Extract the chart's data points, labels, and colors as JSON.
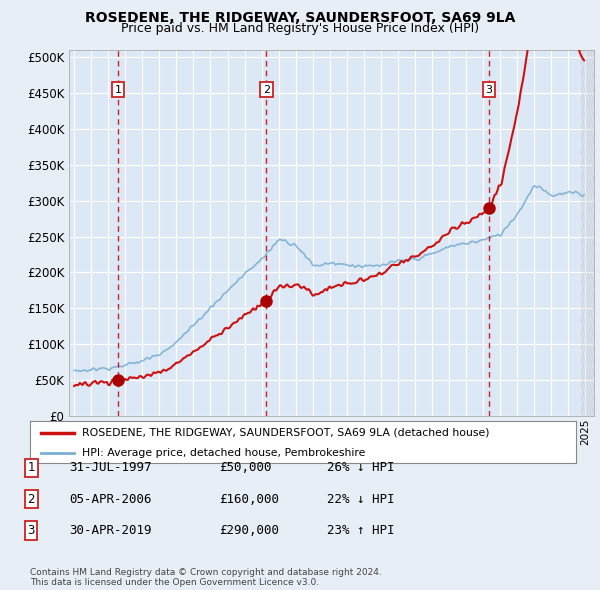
{
  "title": "ROSEDENE, THE RIDGEWAY, SAUNDERSFOOT, SA69 9LA",
  "subtitle": "Price paid vs. HM Land Registry's House Price Index (HPI)",
  "title_fontsize": 10,
  "subtitle_fontsize": 9,
  "background_color": "#e8eef5",
  "plot_bg_color": "#dce8f5",
  "yticks": [
    0,
    50000,
    100000,
    150000,
    200000,
    250000,
    300000,
    350000,
    400000,
    450000,
    500000
  ],
  "ytick_labels": [
    "£0",
    "£50K",
    "£100K",
    "£150K",
    "£200K",
    "£250K",
    "£300K",
    "£350K",
    "£400K",
    "£450K",
    "£500K"
  ],
  "xmin": 1994.7,
  "xmax": 2025.5,
  "ymin": 0,
  "ymax": 510000,
  "sale_points": [
    {
      "year": 1997.58,
      "price": 50000,
      "label": "1"
    },
    {
      "year": 2006.27,
      "price": 160000,
      "label": "2"
    },
    {
      "year": 2019.33,
      "price": 290000,
      "label": "3"
    }
  ],
  "legend_entries": [
    {
      "label": "ROSEDENE, THE RIDGEWAY, SAUNDERSFOOT, SA69 9LA (detached house)",
      "color": "#cc1111",
      "lw": 1.5
    },
    {
      "label": "HPI: Average price, detached house, Pembrokeshire",
      "color": "#7ab0d4",
      "lw": 1.2
    }
  ],
  "table_rows": [
    {
      "num": "1",
      "date": "31-JUL-1997",
      "price": "£50,000",
      "hpi": "26% ↓ HPI"
    },
    {
      "num": "2",
      "date": "05-APR-2006",
      "price": "£160,000",
      "hpi": "22% ↓ HPI"
    },
    {
      "num": "3",
      "date": "30-APR-2019",
      "price": "£290,000",
      "hpi": "23% ↑ HPI"
    }
  ],
  "footer": "Contains HM Land Registry data © Crown copyright and database right 2024.\nThis data is licensed under the Open Government Licence v3.0.",
  "vline_color": "#cc2222",
  "marker_color": "#aa0000",
  "label_box_color": "#ffffff",
  "label_box_edge": "#cc2222",
  "grid_color": "#ffffff"
}
